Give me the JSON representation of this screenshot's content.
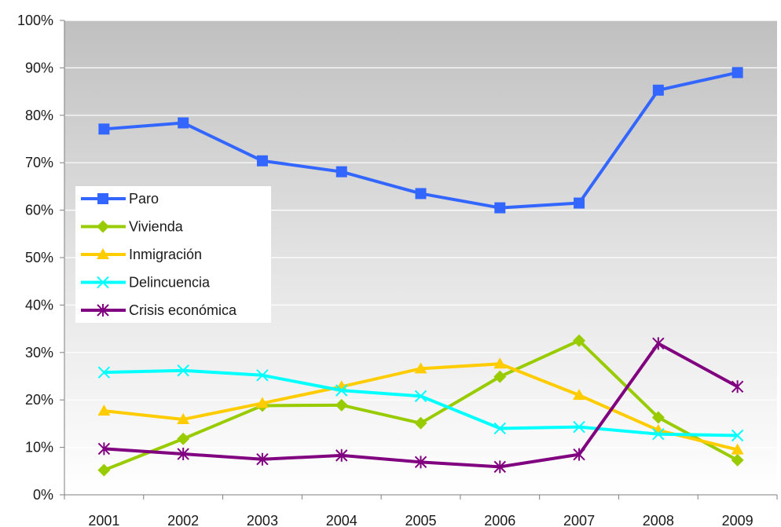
{
  "chart_data": {
    "type": "line",
    "title": "",
    "xlabel": "",
    "ylabel": "",
    "categories": [
      "2001",
      "2002",
      "2003",
      "2004",
      "2005",
      "2006",
      "2007",
      "2008",
      "2009"
    ],
    "ylim": [
      0,
      100
    ],
    "yticks": [
      0,
      10,
      20,
      30,
      40,
      50,
      60,
      70,
      80,
      90,
      100
    ],
    "ytick_labels": [
      "0%",
      "10%",
      "20%",
      "30%",
      "40%",
      "50%",
      "60%",
      "70%",
      "80%",
      "90%",
      "100%"
    ],
    "grid": true,
    "legend_position": "left",
    "plot_background": "gradient gray to white",
    "series": [
      {
        "name": "Paro",
        "color": "#3366ff",
        "marker": "square",
        "values": [
          77.1,
          78.4,
          70.4,
          68.1,
          63.5,
          60.5,
          61.5,
          85.3,
          89.0
        ]
      },
      {
        "name": "Vivienda",
        "color": "#99cc00",
        "marker": "diamond",
        "values": [
          5.2,
          11.8,
          18.8,
          18.9,
          15.1,
          24.9,
          32.5,
          16.3,
          7.3
        ]
      },
      {
        "name": "Inmigración",
        "color": "#ffcc00",
        "marker": "triangle",
        "values": [
          17.7,
          15.9,
          19.3,
          22.8,
          26.6,
          27.6,
          21.0,
          13.6,
          9.5
        ]
      },
      {
        "name": "Delincuencia",
        "color": "#00ffff",
        "marker": "x",
        "values": [
          25.8,
          26.2,
          25.2,
          22.0,
          20.8,
          14.0,
          14.3,
          12.8,
          12.5
        ]
      },
      {
        "name": "Crisis económica",
        "color": "#800080",
        "marker": "asterisk",
        "values": [
          9.7,
          8.6,
          7.5,
          8.3,
          6.9,
          5.9,
          8.5,
          31.9,
          22.8
        ]
      }
    ]
  }
}
